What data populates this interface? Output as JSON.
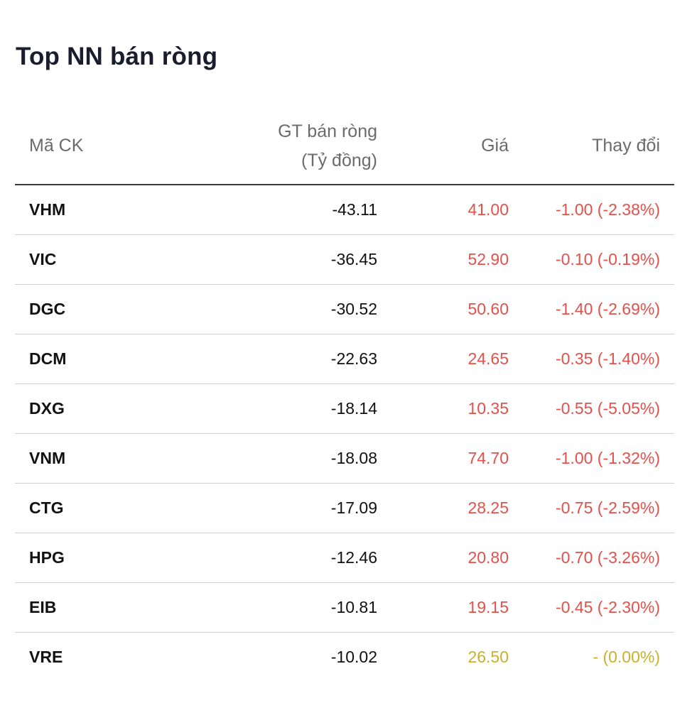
{
  "title": "Top NN bán ròng",
  "columns": {
    "code": "Mã CK",
    "value_line1": "GT bán ròng",
    "value_line2": "(Tỷ đồng)",
    "price": "Giá",
    "change": "Thay đổi"
  },
  "colors": {
    "down": "#e5514a",
    "flat": "#c9b22a",
    "text": "#111111",
    "header_text": "#6b6b6b"
  },
  "rows": [
    {
      "code": "VHM",
      "value": "-43.11",
      "price": "41.00",
      "change": "-1.00 (-2.38%)",
      "status": "down"
    },
    {
      "code": "VIC",
      "value": "-36.45",
      "price": "52.90",
      "change": "-0.10 (-0.19%)",
      "status": "down"
    },
    {
      "code": "DGC",
      "value": "-30.52",
      "price": "50.60",
      "change": "-1.40 (-2.69%)",
      "status": "down"
    },
    {
      "code": "DCM",
      "value": "-22.63",
      "price": "24.65",
      "change": "-0.35 (-1.40%)",
      "status": "down"
    },
    {
      "code": "DXG",
      "value": "-18.14",
      "price": "10.35",
      "change": "-0.55 (-5.05%)",
      "status": "down"
    },
    {
      "code": "VNM",
      "value": "-18.08",
      "price": "74.70",
      "change": "-1.00 (-1.32%)",
      "status": "down"
    },
    {
      "code": "CTG",
      "value": "-17.09",
      "price": "28.25",
      "change": "-0.75 (-2.59%)",
      "status": "down"
    },
    {
      "code": "HPG",
      "value": "-12.46",
      "price": "20.80",
      "change": "-0.70 (-3.26%)",
      "status": "down"
    },
    {
      "code": "EIB",
      "value": "-10.81",
      "price": "19.15",
      "change": "-0.45 (-2.30%)",
      "status": "down"
    },
    {
      "code": "VRE",
      "value": "-10.02",
      "price": "26.50",
      "change": "- (0.00%)",
      "status": "flat"
    }
  ]
}
